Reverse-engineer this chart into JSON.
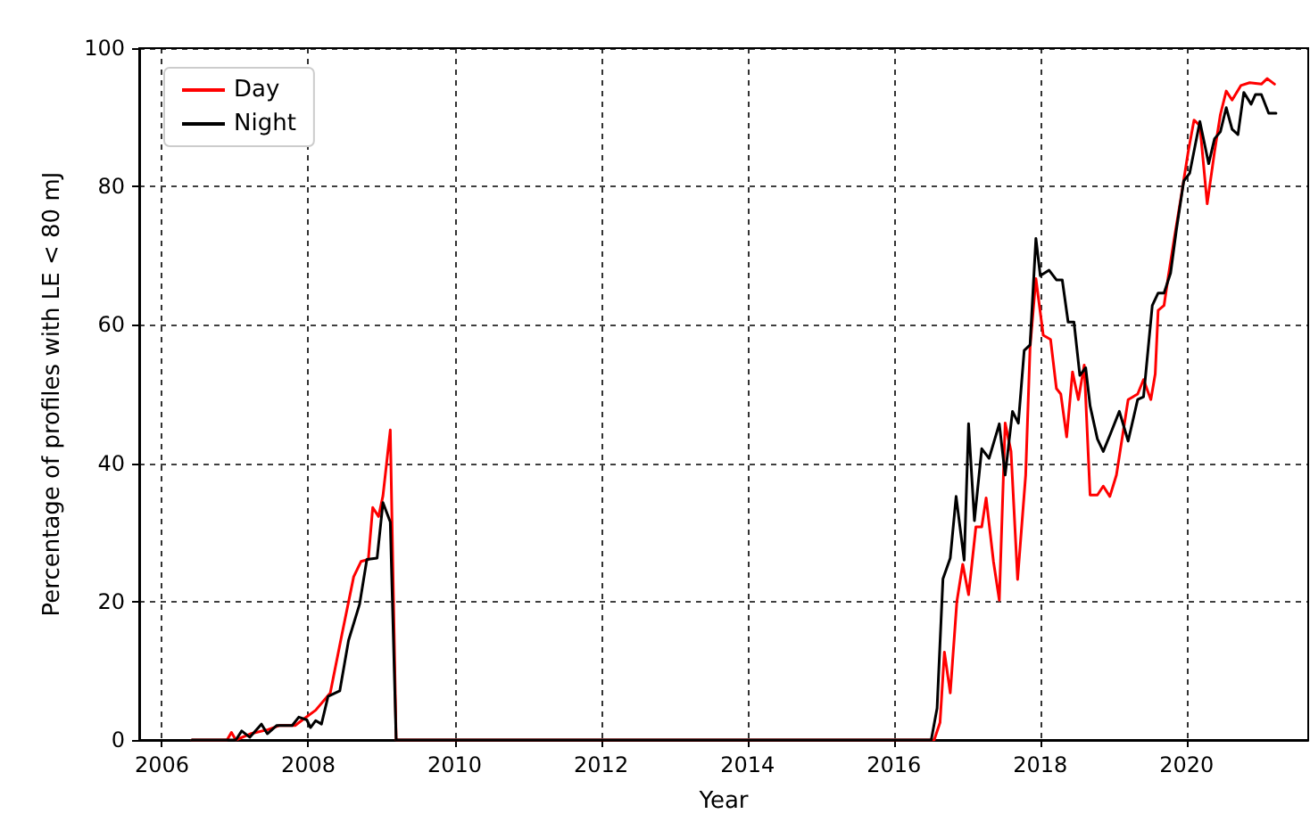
{
  "chart_data": {
    "type": "line",
    "xlabel": "Year",
    "ylabel": "Percentage of profiles with LE < 80 mJ",
    "xlim": [
      2005.69,
      2021.66
    ],
    "xticks": [
      2006,
      2008,
      2010,
      2012,
      2014,
      2016,
      2018,
      2020
    ],
    "ylim": [
      0,
      100
    ],
    "yticks": [
      0,
      20,
      40,
      60,
      80,
      100
    ],
    "grid": true,
    "legend": "top left",
    "marker": "none",
    "line_style": "solid",
    "series": [
      {
        "name": "Day",
        "color": "#ff0000",
        "x": [
          2006.41,
          2006.89,
          2006.95,
          2007.01,
          2007.21,
          2007.45,
          2007.61,
          2007.82,
          2007.92,
          2008.1,
          2008.3,
          2008.46,
          2008.62,
          2008.72,
          2008.82,
          2008.88,
          2008.96,
          2009.02,
          2009.12,
          2009.2,
          2016.55,
          2016.63,
          2016.69,
          2016.77,
          2016.86,
          2016.94,
          2017.02,
          2017.12,
          2017.2,
          2017.26,
          2017.36,
          2017.44,
          2017.52,
          2017.6,
          2017.69,
          2017.8,
          2017.86,
          2017.94,
          2018.04,
          2018.14,
          2018.22,
          2018.28,
          2018.36,
          2018.44,
          2018.52,
          2018.6,
          2018.68,
          2018.78,
          2018.86,
          2018.95,
          2019.04,
          2019.2,
          2019.33,
          2019.41,
          2019.51,
          2019.57,
          2019.61,
          2019.69,
          2019.75,
          2019.83,
          2019.92,
          2020.02,
          2020.1,
          2020.18,
          2020.28,
          2020.38,
          2020.46,
          2020.54,
          2020.62,
          2020.74,
          2020.86,
          2021.02,
          2021.1,
          2021.2
        ],
        "values": [
          0,
          0,
          1.1,
          0,
          0.9,
          1.5,
          2.1,
          2.1,
          2.9,
          4.3,
          6.8,
          15.3,
          23.6,
          25.8,
          26.1,
          33.6,
          32.3,
          35.3,
          44.8,
          0,
          0,
          2.5,
          12.7,
          6.8,
          20,
          25.4,
          21,
          30.8,
          30.8,
          35,
          25.8,
          20.2,
          45.8,
          41.7,
          23.2,
          38.3,
          56.7,
          66.7,
          58.5,
          57.9,
          50.8,
          50,
          43.8,
          53.2,
          49.2,
          54.2,
          35.4,
          35.4,
          36.7,
          35.2,
          38.3,
          49.2,
          50,
          52.1,
          49.2,
          52.9,
          62.1,
          62.8,
          67.1,
          72.5,
          78.3,
          85,
          89.6,
          88.8,
          77.5,
          85,
          90.4,
          93.8,
          92.5,
          94.6,
          95,
          94.8,
          95.6,
          94.8
        ]
      },
      {
        "name": "Night",
        "color": "#000000",
        "x": [
          2006.41,
          2007.01,
          2007.09,
          2007.2,
          2007.36,
          2007.44,
          2007.57,
          2007.78,
          2007.87,
          2007.98,
          2008.03,
          2008.1,
          2008.18,
          2008.27,
          2008.43,
          2008.55,
          2008.7,
          2008.8,
          2008.94,
          2009.02,
          2009.12,
          2009.2,
          2016.51,
          2016.59,
          2016.67,
          2016.77,
          2016.85,
          2016.96,
          2017.02,
          2017.1,
          2017.2,
          2017.3,
          2017.44,
          2017.52,
          2017.62,
          2017.7,
          2017.78,
          2017.86,
          2017.94,
          2018.0,
          2018.12,
          2018.22,
          2018.3,
          2018.38,
          2018.46,
          2018.54,
          2018.62,
          2018.68,
          2018.78,
          2018.86,
          2018.96,
          2019.08,
          2019.2,
          2019.33,
          2019.41,
          2019.53,
          2019.61,
          2019.69,
          2019.78,
          2019.86,
          2019.96,
          2020.04,
          2020.18,
          2020.3,
          2020.38,
          2020.46,
          2020.54,
          2020.62,
          2020.7,
          2020.78,
          2020.88,
          2020.94,
          2021.02,
          2021.12,
          2021.22
        ],
        "values": [
          0,
          0,
          1.3,
          0.4,
          2.3,
          0.9,
          2.1,
          2.1,
          3.3,
          2.9,
          1.8,
          2.8,
          2.3,
          6.3,
          7.1,
          14.4,
          19.6,
          26.1,
          26.3,
          34.3,
          31.5,
          0,
          0,
          4.6,
          23.3,
          26.3,
          35.2,
          26,
          45.7,
          31.7,
          42.1,
          40.7,
          45.7,
          38.3,
          47.5,
          45.8,
          56.3,
          57.1,
          72.5,
          67.1,
          67.9,
          66.5,
          66.5,
          60.4,
          60.4,
          52.7,
          53.8,
          48.3,
          43.5,
          41.7,
          44.3,
          47.5,
          43.2,
          49.2,
          49.6,
          62.8,
          64.6,
          64.6,
          67.5,
          73.8,
          80.8,
          81.9,
          89.4,
          83.3,
          86.9,
          87.9,
          91.4,
          88.3,
          87.5,
          93.6,
          91.9,
          93.3,
          93.3,
          90.6,
          90.6
        ]
      }
    ]
  }
}
